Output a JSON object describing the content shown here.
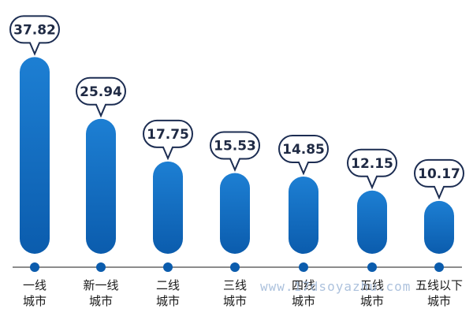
{
  "chart_data": {
    "type": "bar",
    "categories": [
      [
        "一线",
        "城市"
      ],
      [
        "新一线",
        "城市"
      ],
      [
        "二线",
        "城市"
      ],
      [
        "三线",
        "城市"
      ],
      [
        "四线",
        "城市"
      ],
      [
        "五线",
        "城市"
      ],
      [
        "五线以下",
        "城市"
      ]
    ],
    "values": [
      37.82,
      25.94,
      17.75,
      15.53,
      14.85,
      12.15,
      10.17
    ],
    "data_labels": [
      "37.82",
      "25.94",
      "17.75",
      "15.53",
      "14.85",
      "12.15",
      "10.17"
    ],
    "title": "",
    "xlabel": "",
    "ylabel": "",
    "ylim": [
      0,
      40
    ],
    "grid": false,
    "legend": "none",
    "colors": {
      "bar_top": "#1d7fd3",
      "bar_bottom": "#0b5cad",
      "axis": "#8c8c8c",
      "callout_border": "#1c2d52",
      "value_text": "#1f2a44"
    }
  },
  "watermark": "www.17dsoyazhu.com"
}
